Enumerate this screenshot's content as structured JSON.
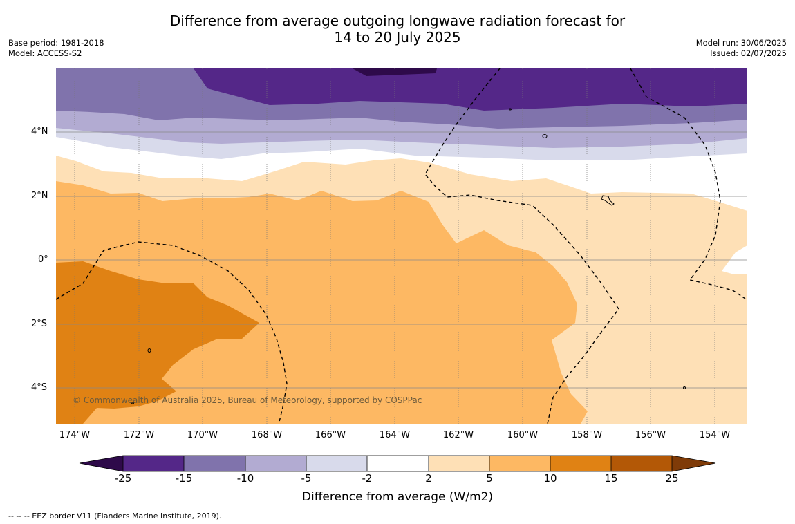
{
  "title_line1": "Difference from average outgoing longwave radiation forecast for",
  "title_line2": "14 to 20 July 2025",
  "base_period": "Base period: 1981-2018",
  "model": "Model: ACCESS-S2",
  "model_run": "Model run: 30/06/2025",
  "issued": "Issued: 02/07/2025",
  "lat_ticks": [
    "4°N",
    "2°N",
    "0°",
    "2°S",
    "4°S"
  ],
  "lon_ticks": [
    "174°W",
    "172°W",
    "170°W",
    "168°W",
    "166°W",
    "164°W",
    "162°W",
    "160°W",
    "158°W",
    "156°W",
    "154°W"
  ],
  "copyright": "© Commonwealth of Australia 2025, Bureau of Meteorology, supported by COSPPac",
  "colorbar": {
    "labels": [
      "-25",
      "-15",
      "-10",
      "-5",
      "-2",
      "2",
      "5",
      "10",
      "15",
      "25"
    ],
    "colors": [
      "#2e0a4a",
      "#542788",
      "#8073ac",
      "#b2abd2",
      "#d8daeb",
      "#ffffff",
      "#fee0b6",
      "#fdb863",
      "#e08214",
      "#b35806",
      "#7f3b08"
    ],
    "title": "Difference from average (W/m2)"
  },
  "footer": "--  --  -- EEZ border V11 (Flanders Marine Institute, 2019)."
}
